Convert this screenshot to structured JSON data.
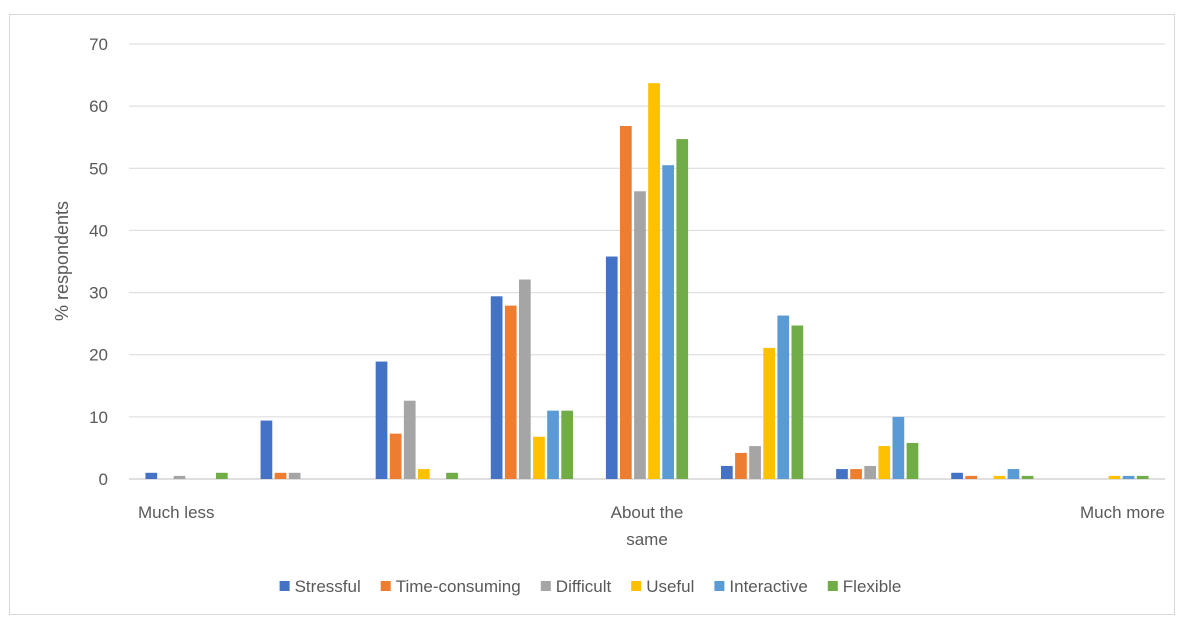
{
  "chart_data": {
    "type": "bar",
    "title": "",
    "xlabel": "",
    "ylabel": "% respondents",
    "ylim": [
      0,
      70
    ],
    "yticks": [
      0,
      10,
      20,
      30,
      40,
      50,
      60,
      70
    ],
    "grid": true,
    "legend_position": "bottom",
    "categories": [
      "Much less",
      "",
      "",
      "",
      "About the same",
      "",
      "",
      "",
      "Much more"
    ],
    "category_labels": [
      {
        "lines": [
          "Much less"
        ],
        "align": "start"
      },
      {
        "lines": [],
        "align": "middle"
      },
      {
        "lines": [],
        "align": "middle"
      },
      {
        "lines": [],
        "align": "middle"
      },
      {
        "lines": [
          "About the",
          "same"
        ],
        "align": "middle"
      },
      {
        "lines": [],
        "align": "middle"
      },
      {
        "lines": [],
        "align": "middle"
      },
      {
        "lines": [],
        "align": "middle"
      },
      {
        "lines": [
          "Much more"
        ],
        "align": "end"
      }
    ],
    "series": [
      {
        "name": "Stressful",
        "color": "#4472C4",
        "values": [
          1,
          9.4,
          18.9,
          29.4,
          35.8,
          2.1,
          1.6,
          1,
          0
        ]
      },
      {
        "name": "Time-consuming",
        "color": "#ED7D31",
        "values": [
          0,
          1,
          7.3,
          27.9,
          56.8,
          4.2,
          1.6,
          0.5,
          0
        ]
      },
      {
        "name": "Difficult",
        "color": "#A5A5A5",
        "values": [
          0.5,
          1,
          12.6,
          32.1,
          46.3,
          5.3,
          2.1,
          0,
          0
        ]
      },
      {
        "name": "Useful",
        "color": "#FFC000",
        "values": [
          0,
          0,
          1.6,
          6.8,
          63.7,
          21.1,
          5.3,
          0.5,
          0.5
        ]
      },
      {
        "name": "Interactive",
        "color": "#5B9BD5",
        "values": [
          0,
          0,
          0,
          11,
          50.5,
          26.3,
          10,
          1.6,
          0.5
        ]
      },
      {
        "name": "Flexible",
        "color": "#70AD47",
        "values": [
          1,
          0,
          1,
          11,
          54.7,
          24.7,
          5.8,
          0.5,
          0.5
        ]
      }
    ]
  }
}
